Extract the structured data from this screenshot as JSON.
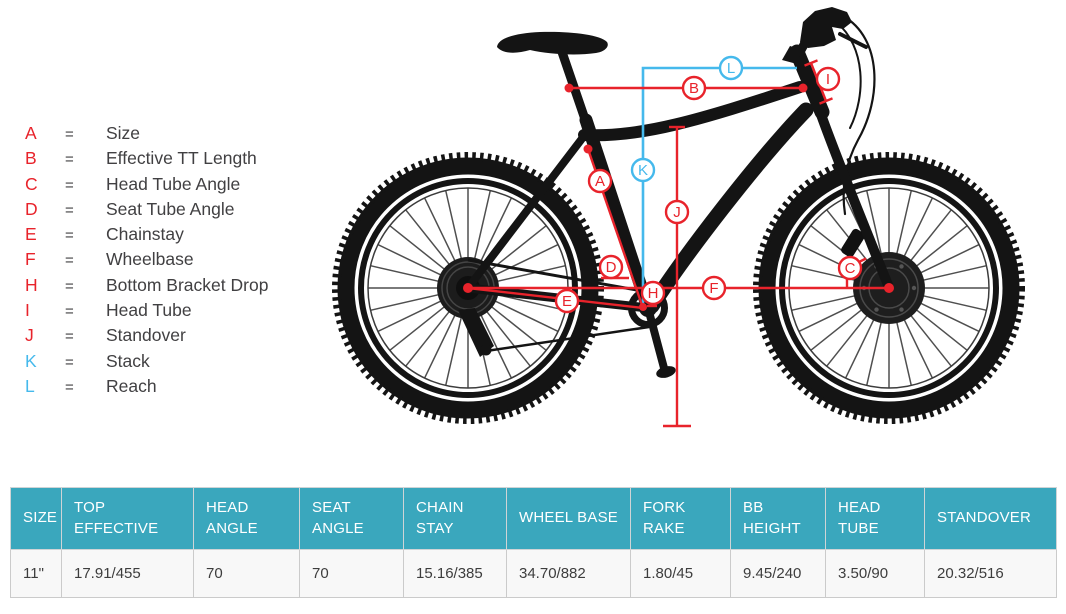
{
  "legend": {
    "equals_sign": "=",
    "items": [
      {
        "letter": "A",
        "label": "Size",
        "color": "#e8232b"
      },
      {
        "letter": "B",
        "label": "Effective TT Length",
        "color": "#e8232b"
      },
      {
        "letter": "C",
        "label": "Head Tube Angle",
        "color": "#e8232b"
      },
      {
        "letter": "D",
        "label": "Seat Tube Angle",
        "color": "#e8232b"
      },
      {
        "letter": "E",
        "label": "Chainstay",
        "color": "#e8232b"
      },
      {
        "letter": "F",
        "label": "Wheelbase",
        "color": "#e8232b"
      },
      {
        "letter": "H",
        "label": "Bottom Bracket Drop",
        "color": "#e8232b"
      },
      {
        "letter": "I",
        "label": "Head Tube",
        "color": "#e8232b"
      },
      {
        "letter": "J",
        "label": "Standover",
        "color": "#e8232b"
      },
      {
        "letter": "K",
        "label": "Stack",
        "color": "#45b9ec"
      },
      {
        "letter": "L",
        "label": "Reach",
        "color": "#45b9ec"
      }
    ]
  },
  "table": {
    "headers": [
      "SIZE",
      "TOP EFFECTIVE",
      "HEAD ANGLE",
      "SEAT ANGLE",
      "CHAIN STAY",
      "WHEEL BASE",
      "FORK RAKE",
      "BB HEIGHT",
      "HEAD TUBE",
      "STANDOVER"
    ],
    "rows": [
      [
        "11\"",
        "17.91/455",
        "70",
        "70",
        "15.16/385",
        "34.70/882",
        "1.80/45",
        "9.45/240",
        "3.50/90",
        "20.32/516"
      ]
    ]
  },
  "colors": {
    "measure_red": "#e8232b",
    "measure_blue": "#45b9ec",
    "table_header_teal": "#3aa7bd",
    "frame_black": "#141414",
    "text_gray": "#414042"
  }
}
